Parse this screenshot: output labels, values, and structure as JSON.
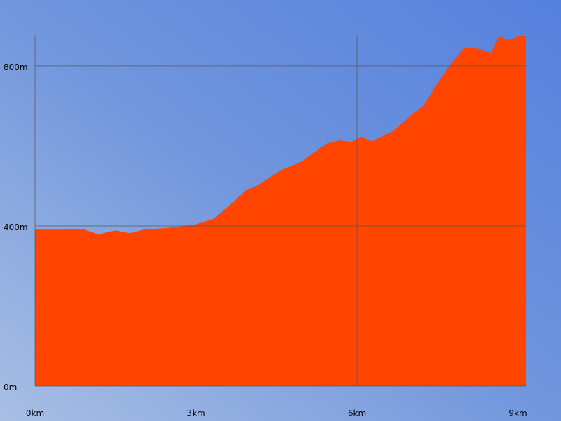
{
  "chart_data": {
    "type": "area",
    "x": [
      0,
      0.92,
      1.18,
      1.5,
      1.76,
      2.03,
      2.48,
      3.0,
      3.33,
      3.59,
      3.92,
      4.18,
      4.58,
      4.97,
      5.42,
      5.69,
      5.88,
      6.08,
      6.27,
      6.67,
      7.0,
      7.25,
      7.45,
      7.71,
      8.0,
      8.3,
      8.5,
      8.65,
      8.82,
      9.02,
      9.15
    ],
    "values": [
      391,
      391,
      379,
      389,
      382,
      391,
      395,
      404,
      418,
      447,
      488,
      504,
      539,
      561,
      605,
      614,
      609,
      623,
      611,
      637,
      675,
      702,
      746,
      798,
      846,
      842,
      833,
      874,
      865,
      874,
      874
    ],
    "color": "#ff4500",
    "xlim": [
      0,
      9.15
    ],
    "ylim": [
      0,
      877
    ],
    "xticks": [
      {
        "value": 0,
        "label": "0km"
      },
      {
        "value": 3,
        "label": "3km"
      },
      {
        "value": 6,
        "label": "6km"
      },
      {
        "value": 9,
        "label": "9km"
      }
    ],
    "yticks": [
      {
        "value": 0,
        "label": "0m"
      },
      {
        "value": 400,
        "label": "400m"
      },
      {
        "value": 800,
        "label": "800m"
      }
    ],
    "grid": true
  }
}
